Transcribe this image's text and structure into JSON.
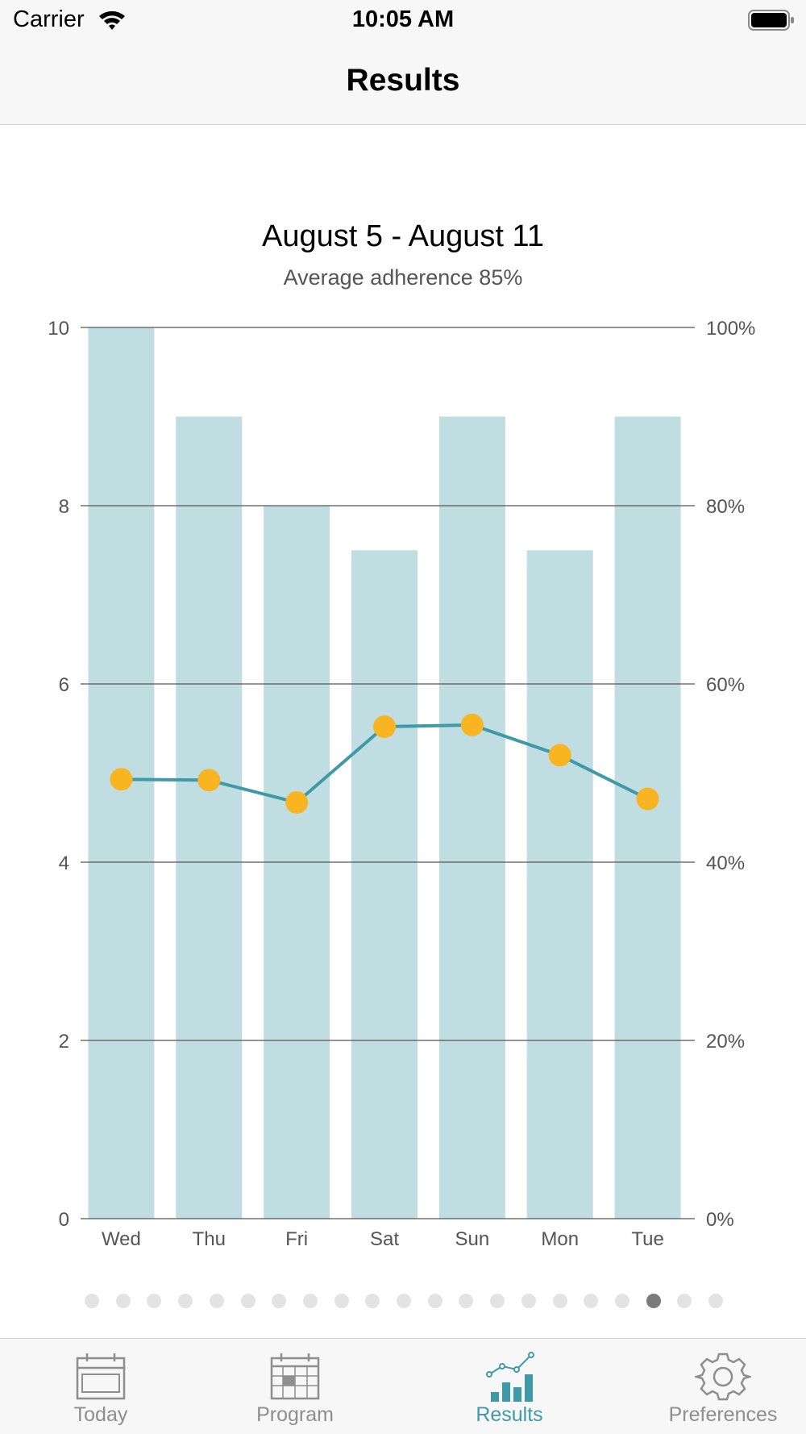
{
  "status_bar": {
    "carrier": "Carrier",
    "time": "10:05 AM"
  },
  "nav": {
    "title": "Results"
  },
  "chart_data": {
    "type": "bar",
    "title": "August 5 - August 11",
    "subtitle": "Average adherence 85%",
    "categories": [
      "Wed",
      "Thu",
      "Fri",
      "Sat",
      "Sun",
      "Mon",
      "Tue"
    ],
    "series": [
      {
        "kind": "bar",
        "axis": "left",
        "values": [
          10,
          9,
          8,
          7.5,
          9,
          7.5,
          9
        ]
      },
      {
        "kind": "line",
        "axis": "left",
        "values": [
          4.93,
          4.92,
          4.67,
          5.52,
          5.54,
          5.2,
          4.71
        ]
      }
    ],
    "left_axis": {
      "ylim": [
        0,
        10
      ],
      "ticks": [
        "0",
        "2",
        "4",
        "6",
        "8",
        "10"
      ],
      "tick_values": [
        0,
        2,
        4,
        6,
        8,
        10
      ]
    },
    "right_axis": {
      "ylim": [
        0,
        100
      ],
      "ticks": [
        "0%",
        "20%",
        "40%",
        "60%",
        "80%",
        "100%"
      ],
      "tick_values": [
        0,
        20,
        40,
        60,
        80,
        100
      ]
    },
    "grid": true,
    "colors": {
      "bar": "#c0dde1",
      "line": "#3f9aa8",
      "point": "#f8b421",
      "grid": "#555555",
      "tick_label": "#555555"
    }
  },
  "pager": {
    "total": 21,
    "active_index": 18
  },
  "tabs": [
    {
      "label": "Today",
      "icon": "calendar-icon",
      "active": false
    },
    {
      "label": "Program",
      "icon": "calendar-grid-icon",
      "active": false
    },
    {
      "label": "Results",
      "icon": "chart-icon",
      "active": true
    },
    {
      "label": "Preferences",
      "icon": "gear-icon",
      "active": false
    }
  ],
  "colors": {
    "accent": "#3f9aa8",
    "inactive": "#8e8e8e"
  }
}
